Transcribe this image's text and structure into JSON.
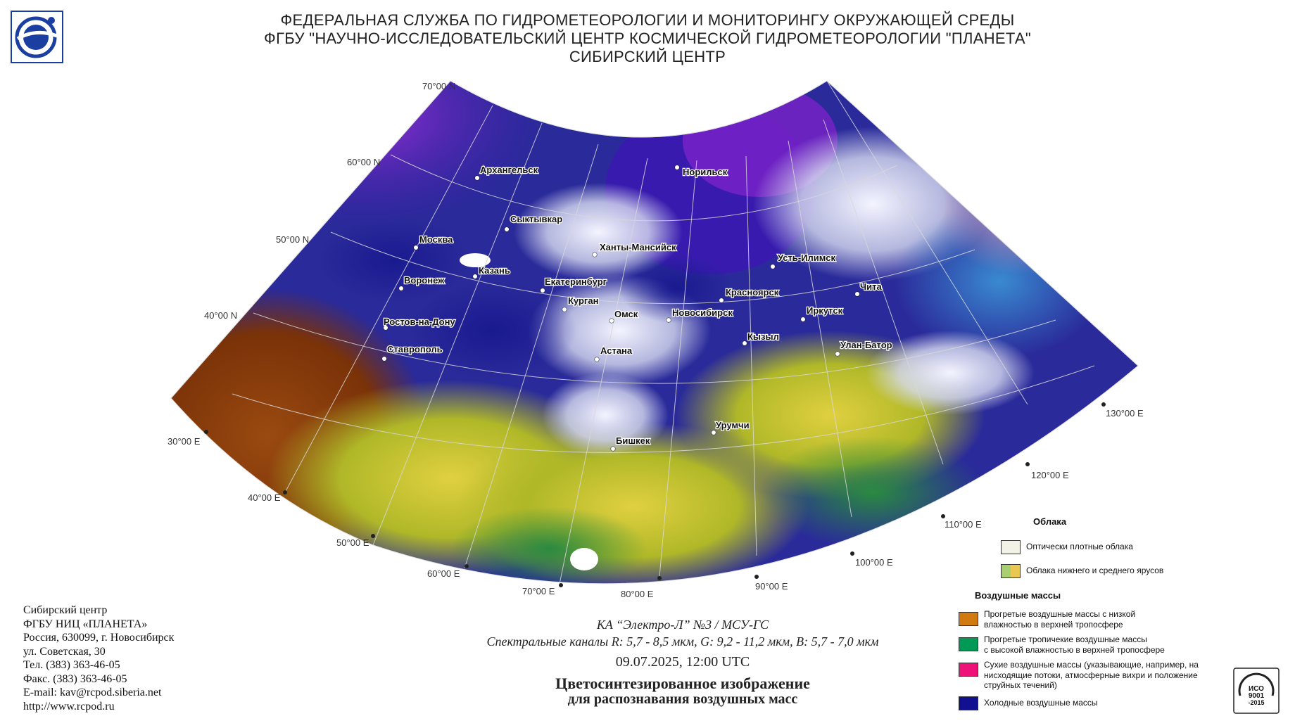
{
  "header": {
    "line1": "ФЕДЕРАЛЬНАЯ СЛУЖБА ПО ГИДРОМЕТЕОРОЛОГИИ И МОНИТОРИНГУ ОКРУЖАЮЩЕЙ СРЕДЫ",
    "line2": "ФГБУ \"НАУЧНО-ИССЛЕДОВАТЕЛЬСКИЙ ЦЕНТР КОСМИЧЕСКОЙ ГИДРОМЕТЕОРОЛОГИИ \"ПЛАНЕТА\"",
    "line3": "СИБИРСКИЙ ЦЕНТР"
  },
  "logo": {
    "icon": "planeta-logo-icon",
    "color": "#1a3fa0"
  },
  "map": {
    "latitude_labels": [
      "70°00 N",
      "60°00 N",
      "50°00 N",
      "40°00 N"
    ],
    "longitude_labels": [
      "30°00 E",
      "40°00 E",
      "50°00 E",
      "60°00 E",
      "70°00 E",
      "80°00 E",
      "90°00 E",
      "100°00 E",
      "110°00 E",
      "120°00 E",
      "130°00 E"
    ],
    "cities": [
      "Архангельск",
      "Норильск",
      "Сыктывкар",
      "Москва",
      "Ханты-Мансийск",
      "Усть-Илимск",
      "Казань",
      "Екатеринбург",
      "Воронеж",
      "Красноярск",
      "Чита",
      "Курган",
      "Омск",
      "Новосибирск",
      "Иркутск",
      "Ростов-на-Дону",
      "Кызыл",
      "Улан-Батор",
      "Астана",
      "Ставрополь",
      "Урумчи",
      "Бишкек"
    ]
  },
  "footer": {
    "org": "Сибирский центр",
    "name": "ФГБУ НИЦ «ПЛАНЕТА»",
    "city": "Россия, 630099, г. Новосибирск",
    "street": "ул. Советская, 30",
    "phone": "Тел. (383) 363-46-05",
    "fax": "Факс. (383) 363-46-05",
    "email": "E-mail: kav@rcpod.siberia.net",
    "web": "http://www.rcpod.ru"
  },
  "caption": {
    "satellite": "КА “Электро-Л” №3 / МСУ-ГС",
    "channels": "Спектральные каналы R: 5,7 - 8,5 мкм, G: 9,2 - 11,2 мкм, B: 5,7 - 7,0 мкм",
    "datetime": "09.07.2025, 12:00 UTC",
    "title1": "Цветосинтезированное изображение",
    "title2": "для распознавания воздушных масс"
  },
  "legend": {
    "clouds_title": "Облака",
    "clouds": [
      {
        "label": "Оптически плотные облака",
        "color": "#f2f2e6"
      },
      {
        "label": "Облака нижнего и среднего ярусов",
        "colors": [
          "#a8d070",
          "#e8c850"
        ]
      }
    ],
    "air_title": "Воздушные массы",
    "air": [
      {
        "label1": "Прогретые воздушные массы с низкой",
        "label2": "влажностью в верхней тропосфере",
        "label3": "",
        "color": "#d07a10"
      },
      {
        "label1": "Прогретые тропичекие воздушные массы",
        "label2": "с высокой влажностью в верхней тропосфере",
        "label3": "",
        "color": "#009955"
      },
      {
        "label1": "Сухие воздушные массы (указывающие, например, на",
        "label2": "нисходящие потоки, атмосферные вихри и положение",
        "label3": "струйных течений)",
        "color": "#ee1177"
      },
      {
        "label1": "Холодные воздушные массы",
        "label2": "",
        "label3": "",
        "color": "#101090"
      }
    ]
  },
  "certificate": {
    "icon": "iso-certificate-icon",
    "text1": "ИСО",
    "text2": "9001",
    "text3": "-2015"
  }
}
